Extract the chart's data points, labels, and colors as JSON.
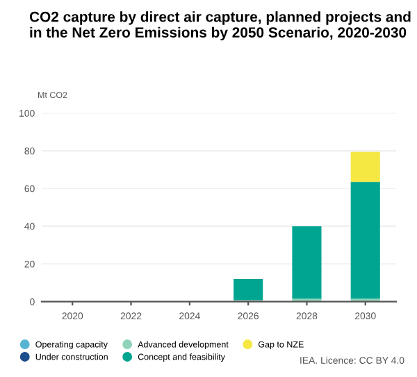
{
  "chart_data": {
    "type": "bar",
    "title": "CO2 capture by direct air capture, planned projects and in the Net Zero Emissions by 2050 Scenario, 2020-2030",
    "ylabel": "Mt CO2",
    "categories": [
      "2020",
      "2022",
      "2024",
      "2026",
      "2028",
      "2030"
    ],
    "stacked": true,
    "series": [
      {
        "name": "Operating capacity",
        "color": "#56b4d3",
        "values": [
          0,
          0,
          0,
          0,
          0,
          0
        ]
      },
      {
        "name": "Under construction",
        "color": "#1f4e8c",
        "values": [
          0,
          0,
          0,
          0.5,
          null,
          null
        ]
      },
      {
        "name": "Advanced development",
        "color": "#8fd3b8",
        "values": [
          0,
          0,
          0,
          0.5,
          1.5,
          1.5
        ]
      },
      {
        "name": "Concept and feasibility",
        "color": "#00a591",
        "values": [
          0,
          0,
          0,
          11,
          38.5,
          62
        ]
      },
      {
        "name": "Gap to NZE",
        "color": "#f5e843",
        "values": [
          0,
          0,
          0,
          0,
          0,
          16
        ]
      }
    ],
    "ylim": [
      0,
      100
    ],
    "yticks": [
      0,
      20,
      40,
      60,
      80,
      100
    ],
    "grid": "y",
    "legend": "bottom",
    "annotations": [
      "IEA. Licence: CC BY 4.0"
    ]
  }
}
